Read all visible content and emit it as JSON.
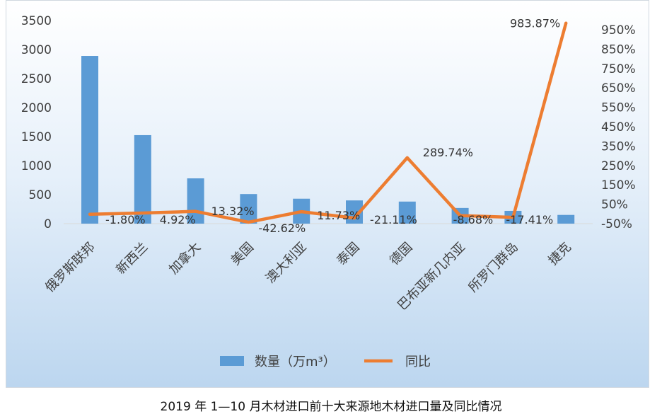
{
  "chart_data": {
    "type": "bar+line",
    "title": "2019 年 1—10 月木材进口前十大来源地木材进口量及同比情况",
    "categories": [
      "俄罗斯联邦",
      "新西兰",
      "加拿大",
      "美国",
      "澳大利亚",
      "泰国",
      "德国",
      "巴布亚新几内亚",
      "所罗门群岛",
      "捷克"
    ],
    "series": [
      {
        "name": "数量（万m³）",
        "type": "bar",
        "axis": "left",
        "color": "#5b9bd5",
        "values": [
          2890,
          1525,
          780,
          510,
          430,
          400,
          380,
          270,
          220,
          150
        ]
      },
      {
        "name": "同比",
        "type": "line",
        "axis": "right",
        "color": "#ed7d31",
        "values": [
          -1.8,
          4.92,
          13.32,
          -42.62,
          11.73,
          -21.11,
          289.74,
          -8.68,
          -17.41,
          983.87
        ],
        "labels": [
          "-1.80%",
          "4.92%",
          "13.32%",
          "-42.62%",
          "11.73%",
          "-21.11%",
          "289.74%",
          "-8.68%",
          "-17.41%",
          "983.87%"
        ]
      }
    ],
    "left_axis": {
      "ylim": [
        0,
        3500
      ],
      "ticks": [
        "0",
        "500",
        "1000",
        "1500",
        "2000",
        "2500",
        "3000",
        "3500"
      ]
    },
    "right_axis": {
      "ylim": [
        -50,
        950
      ],
      "ticks": [
        "-50%",
        "50%",
        "150%",
        "250%",
        "350%",
        "450%",
        "550%",
        "650%",
        "750%",
        "850%",
        "950%"
      ]
    },
    "grid": false,
    "legend": "bottom"
  }
}
